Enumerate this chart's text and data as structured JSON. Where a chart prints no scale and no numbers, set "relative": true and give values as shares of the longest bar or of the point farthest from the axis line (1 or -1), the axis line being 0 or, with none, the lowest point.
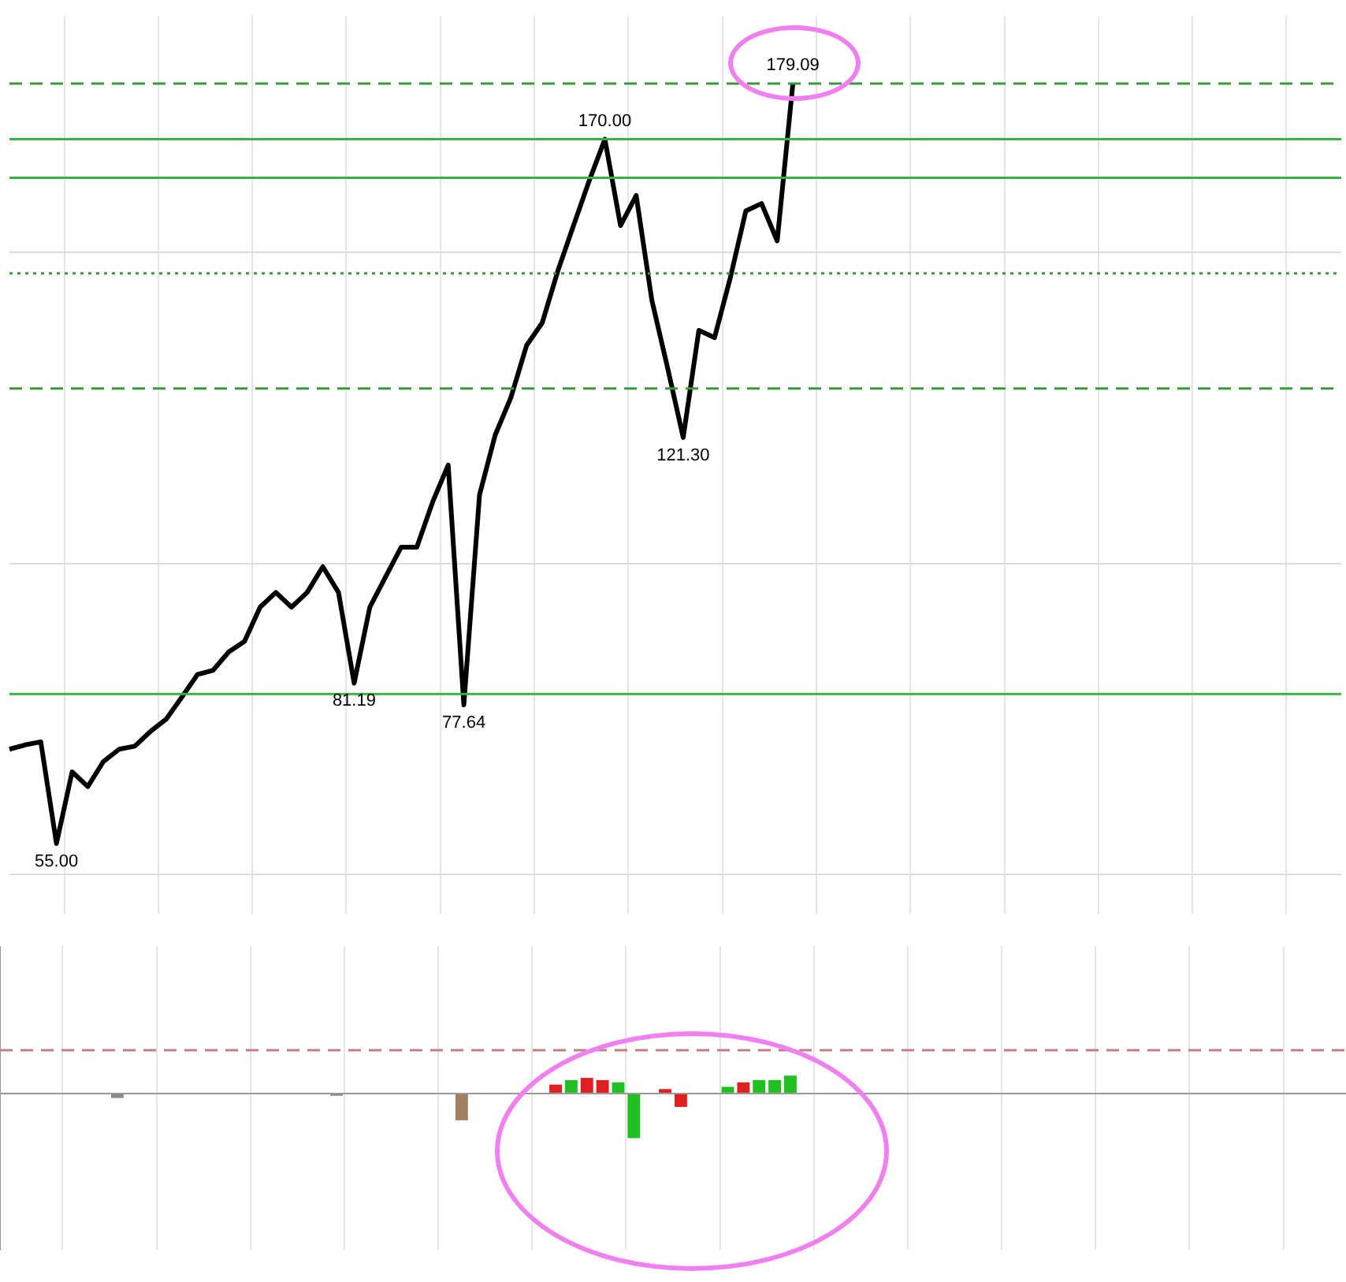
{
  "chart_data": [
    {
      "type": "line",
      "categories": [
        null,
        null,
        null,
        null,
        null,
        null,
        null,
        null,
        null,
        null,
        null,
        null,
        null,
        null,
        null,
        null,
        null,
        null,
        null,
        null,
        null,
        null,
        null,
        null,
        null,
        null,
        null,
        null,
        null,
        null,
        null,
        null,
        null,
        null,
        null,
        null,
        null,
        null,
        null,
        null,
        null,
        null,
        null,
        null,
        null,
        null,
        null,
        null,
        null,
        null,
        null,
        null,
        null,
        null,
        null,
        null,
        null,
        null,
        null,
        null,
        null,
        null,
        null,
        null,
        null,
        null,
        null,
        null,
        null,
        null,
        null,
        null,
        null,
        null,
        null,
        null,
        null,
        null,
        null,
        null,
        null,
        null,
        null,
        null,
        null,
        null
      ],
      "series": [
        {
          "color": "#000000",
          "values": [
            70.4,
            71.1,
            71.6,
            55.0,
            66.7,
            64.3,
            68.4,
            70.4,
            70.9,
            73.3,
            75.3,
            78.9,
            82.6,
            83.3,
            86.3,
            88.0,
            93.6,
            96.0,
            93.6,
            96.0,
            100.2,
            96.0,
            81.19,
            93.6,
            98.5,
            103.4,
            103.4,
            110.7,
            116.8,
            77.64,
            111.9,
            121.7,
            127.8,
            136.3,
            140.0,
            148.5,
            155.9,
            163.2,
            170.0,
            155.9,
            160.8,
            143.7,
            132.7,
            121.3,
            138.8,
            137.6,
            147.3,
            158.3,
            159.5,
            153.4,
            179.09,
            null,
            null,
            null,
            null,
            null,
            null,
            null,
            null,
            null,
            null,
            null,
            null,
            null,
            null,
            null,
            null,
            null,
            null,
            null,
            null,
            null,
            null,
            null,
            null,
            null,
            null,
            null,
            null,
            null,
            null,
            null,
            null,
            null,
            null,
            null
          ],
          "value_labels": [
            null,
            null,
            null,
            "55.00",
            null,
            null,
            null,
            null,
            null,
            null,
            null,
            null,
            null,
            null,
            null,
            null,
            null,
            null,
            null,
            null,
            null,
            null,
            "81.19",
            null,
            null,
            null,
            null,
            null,
            null,
            "77.64",
            null,
            null,
            null,
            null,
            null,
            null,
            null,
            null,
            "170.00",
            null,
            null,
            null,
            null,
            "121.30",
            null,
            null,
            null,
            null,
            null,
            null,
            "179.09",
            null,
            null,
            null,
            null,
            null,
            null,
            null,
            null,
            null,
            null,
            null,
            null,
            null,
            null,
            null,
            null,
            null,
            null,
            null,
            null,
            null,
            null,
            null,
            null,
            null,
            null,
            null,
            null,
            null,
            null,
            null,
            null,
            null,
            null,
            null
          ]
        }
      ],
      "ylim": [
        43.5,
        190.1
      ],
      "yticks": [
        {
          "value": 49.9,
          "label": null
        },
        {
          "value": 100.7,
          "label": null
        },
        {
          "value": 151.5,
          "label": null
        }
      ],
      "grid": true,
      "legend": false,
      "marker": "none",
      "line_style": "solid",
      "ref_lines": [
        {
          "axis": "y",
          "value": 179.09,
          "color": "#3a9a3a",
          "line_style": "dashed"
        },
        {
          "axis": "y",
          "value": 170.0,
          "color": "#3cb043",
          "line_style": "solid"
        },
        {
          "axis": "y",
          "value": 163.7,
          "color": "#3cb043",
          "line_style": "solid"
        },
        {
          "axis": "y",
          "value": 148.1,
          "color": "#3a9a3a",
          "line_style": "dotted"
        },
        {
          "axis": "y",
          "value": 129.3,
          "color": "#3a9a3a",
          "line_style": "dashed"
        },
        {
          "axis": "y",
          "value": 79.4,
          "color": "#3cb043",
          "line_style": "solid"
        }
      ]
    },
    {
      "type": "bar",
      "relative": true,
      "categories": [
        null,
        null,
        null,
        null,
        null,
        null,
        null,
        null,
        null,
        null,
        null,
        null,
        null,
        null,
        null,
        null,
        null,
        null,
        null,
        null,
        null,
        null,
        null,
        null,
        null,
        null,
        null,
        null,
        null,
        null,
        null,
        null,
        null,
        null,
        null,
        null,
        null,
        null,
        null,
        null,
        null,
        null,
        null,
        null,
        null,
        null,
        null,
        null,
        null,
        null,
        null,
        null,
        null,
        null,
        null,
        null,
        null,
        null,
        null,
        null,
        null,
        null,
        null,
        null,
        null,
        null,
        null,
        null,
        null,
        null,
        null,
        null,
        null,
        null,
        null,
        null,
        null,
        null,
        null,
        null,
        null,
        null,
        null,
        null,
        null,
        null
      ],
      "values": [
        null,
        null,
        null,
        null,
        null,
        null,
        null,
        -0.1,
        null,
        null,
        null,
        null,
        null,
        null,
        null,
        null,
        null,
        null,
        null,
        null,
        null,
        -0.05,
        null,
        null,
        null,
        null,
        null,
        null,
        null,
        -0.6,
        null,
        null,
        null,
        null,
        null,
        0.2,
        0.3,
        0.35,
        0.3,
        0.25,
        -1,
        null,
        0.1,
        -0.3,
        null,
        null,
        0.15,
        0.25,
        0.3,
        0.3,
        0.4,
        null,
        null,
        null,
        null,
        null,
        null,
        null,
        null,
        null,
        null,
        null,
        null,
        null,
        null,
        null,
        null,
        null,
        null,
        null,
        null,
        null,
        null,
        null,
        null,
        null,
        null,
        null,
        null,
        null,
        null,
        null,
        null,
        null,
        null,
        null
      ],
      "colors": [
        "#888888",
        "#888888",
        "#888888",
        "#888888",
        "#888888",
        "#888888",
        "#888888",
        "#888888",
        "#888888",
        "#888888",
        "#888888",
        "#888888",
        "#888888",
        "#888888",
        "#888888",
        "#888888",
        "#888888",
        "#888888",
        "#888888",
        "#888888",
        "#888888",
        "#888888",
        "#888888",
        "#888888",
        "#888888",
        "#888888",
        "#888888",
        "#888888",
        "#888888",
        "#a08060",
        "#888888",
        "#888888",
        "#888888",
        "#888888",
        "#888888",
        "#e02020",
        "#20c020",
        "#e02020",
        "#e02020",
        "#20c020",
        "#20c020",
        "#888888",
        "#e02020",
        "#e02020",
        "#888888",
        "#888888",
        "#20c020",
        "#e02020",
        "#20c020",
        "#20c020",
        "#20c020",
        "#888888",
        "#888888",
        "#888888",
        "#888888",
        "#888888",
        "#888888",
        "#888888",
        "#888888",
        "#888888",
        "#888888",
        "#888888",
        "#888888",
        "#888888",
        "#888888",
        "#888888",
        "#888888",
        "#888888",
        "#888888",
        "#888888",
        "#888888",
        "#888888",
        "#888888",
        "#888888",
        "#888888",
        "#888888",
        "#888888",
        "#888888",
        "#888888",
        "#888888",
        "#888888",
        "#888888",
        "#888888",
        "#888888",
        "#888888",
        "#888888"
      ],
      "grid": true,
      "legend": false,
      "ref_lines": [
        {
          "axis": "y",
          "value": 0.97,
          "color": "#c08080",
          "line_style": "dashed"
        }
      ]
    }
  ]
}
